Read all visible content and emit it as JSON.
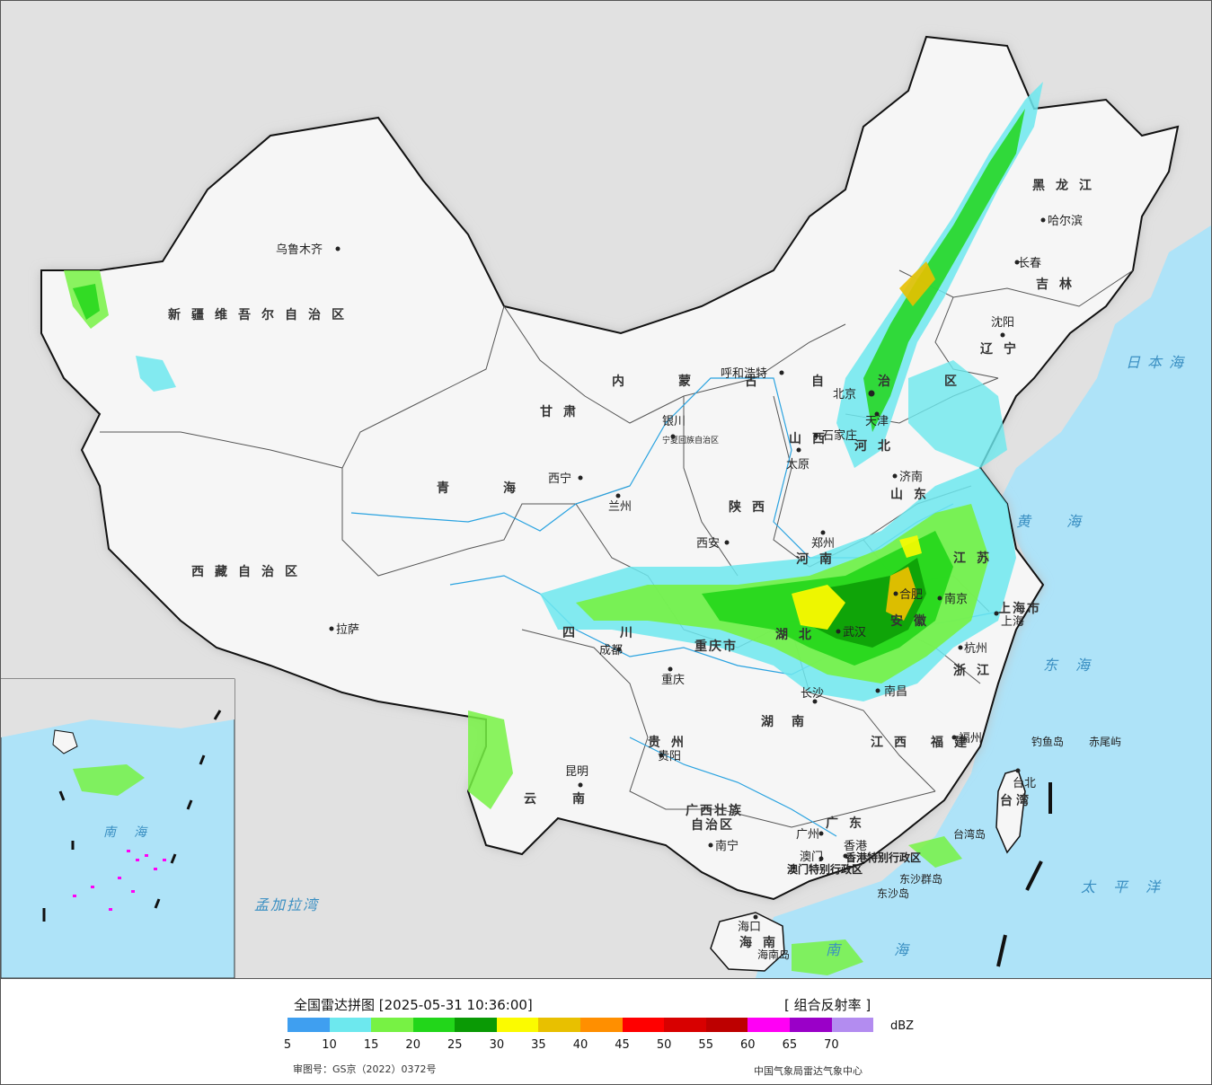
{
  "map": {
    "provinces": [
      {
        "id": "xinjiang",
        "text": "新疆维吾尔自治区"
      },
      {
        "id": "xizang",
        "text": "西藏自治区"
      },
      {
        "id": "qinghai",
        "text": "青海"
      },
      {
        "id": "gansu",
        "text": "甘肃"
      },
      {
        "id": "neimenggu",
        "text": "内蒙古自治区"
      },
      {
        "id": "heilongjiang",
        "text": "黑龙江"
      },
      {
        "id": "jilin",
        "text": "吉林"
      },
      {
        "id": "liaoning",
        "text": "辽宁"
      },
      {
        "id": "hebei",
        "text": "河北"
      },
      {
        "id": "shanxi",
        "text": "山西"
      },
      {
        "id": "shaanxi",
        "text": "陕西"
      },
      {
        "id": "shandong",
        "text": "山东"
      },
      {
        "id": "henan",
        "text": "河南"
      },
      {
        "id": "jiangsu",
        "text": "江苏"
      },
      {
        "id": "anhui",
        "text": "安徽"
      },
      {
        "id": "hubei",
        "text": "湖北"
      },
      {
        "id": "sichuan",
        "text": "四川"
      },
      {
        "id": "chongqing",
        "text": "重庆市"
      },
      {
        "id": "zhejiang",
        "text": "浙江"
      },
      {
        "id": "jiangxi",
        "text": "江西"
      },
      {
        "id": "hunan",
        "text": "湖南"
      },
      {
        "id": "guizhou",
        "text": "贵州"
      },
      {
        "id": "yunnan",
        "text": "云南"
      },
      {
        "id": "fujian",
        "text": "福建"
      },
      {
        "id": "guangxi1",
        "text": "广西壮族"
      },
      {
        "id": "guangxi2",
        "text": "自治区"
      },
      {
        "id": "guangdong",
        "text": "广东"
      },
      {
        "id": "hainan",
        "text": "海南"
      },
      {
        "id": "taiwan",
        "text": "台湾"
      },
      {
        "id": "shanghai",
        "text": "上海市"
      },
      {
        "id": "ningxia",
        "text": "宁夏回族自治区"
      },
      {
        "id": "hongkong",
        "text": "香港特别行政区"
      },
      {
        "id": "macau",
        "text": "澳门特别行政区"
      }
    ],
    "cities": [
      {
        "id": "urumqi",
        "text": "乌鲁木齐"
      },
      {
        "id": "lhasa",
        "text": "拉萨"
      },
      {
        "id": "xining",
        "text": "西宁"
      },
      {
        "id": "lanzhou",
        "text": "兰州"
      },
      {
        "id": "yinchuan",
        "text": "银川"
      },
      {
        "id": "huhehaote",
        "text": "呼和浩特"
      },
      {
        "id": "beijing",
        "text": "北京"
      },
      {
        "id": "tianjin",
        "text": "天津"
      },
      {
        "id": "shijiazhuang",
        "text": "石家庄"
      },
      {
        "id": "taiyuan",
        "text": "太原"
      },
      {
        "id": "jinan",
        "text": "济南"
      },
      {
        "id": "zhengzhou",
        "text": "郑州"
      },
      {
        "id": "xian",
        "text": "西安"
      },
      {
        "id": "nanjing",
        "text": "南京"
      },
      {
        "id": "hefei",
        "text": "合肥"
      },
      {
        "id": "shanghai_c",
        "text": "上海"
      },
      {
        "id": "hangzhou",
        "text": "杭州"
      },
      {
        "id": "wuhan",
        "text": "武汉"
      },
      {
        "id": "chengdu",
        "text": "成都"
      },
      {
        "id": "chongqing_c",
        "text": "重庆"
      },
      {
        "id": "changsha",
        "text": "长沙"
      },
      {
        "id": "nanchang",
        "text": "南昌"
      },
      {
        "id": "guiyang",
        "text": "贵阳"
      },
      {
        "id": "kunming",
        "text": "昆明"
      },
      {
        "id": "fuzhou",
        "text": "福州"
      },
      {
        "id": "taibei",
        "text": "台北"
      },
      {
        "id": "guangzhou",
        "text": "广州"
      },
      {
        "id": "nanning",
        "text": "南宁"
      },
      {
        "id": "xianggang",
        "text": "香港"
      },
      {
        "id": "aomen",
        "text": "澳门"
      },
      {
        "id": "haikou",
        "text": "海口"
      },
      {
        "id": "shenyang",
        "text": "沈阳"
      },
      {
        "id": "changchun",
        "text": "长春"
      },
      {
        "id": "haerbin",
        "text": "哈尔滨"
      }
    ],
    "seas": [
      {
        "id": "ribenhai",
        "text": "日本海"
      },
      {
        "id": "huanghai",
        "text": "黄海"
      },
      {
        "id": "donghai",
        "text": "东海"
      },
      {
        "id": "taipingyang",
        "text": "太平洋"
      },
      {
        "id": "nanhai",
        "text": "南海"
      },
      {
        "id": "mengjialawan",
        "text": "孟加拉湾"
      },
      {
        "id": "inset_nanhai",
        "text": "南海"
      }
    ],
    "islands": [
      {
        "id": "diaoyudao",
        "text": "钓鱼岛"
      },
      {
        "id": "chiweiyu",
        "text": "赤尾屿"
      },
      {
        "id": "taiwandao",
        "text": "台湾岛"
      },
      {
        "id": "dongshaqundao",
        "text": "东沙群岛"
      },
      {
        "id": "dongshadao",
        "text": "东沙岛"
      },
      {
        "id": "hainandao",
        "text": "海南岛"
      }
    ]
  },
  "legend": {
    "title": "全国雷达拼图 [2025-05-31 10:36:00]",
    "product": "[ 组合反射率 ]",
    "unit": "dBZ",
    "approval": "审图号：GS京（2022）0372号",
    "org": "中国气象局雷达气象中心",
    "colors": [
      "#3f9ff0",
      "#6de8ee",
      "#77f244",
      "#22d61a",
      "#0a9a05",
      "#fbfb00",
      "#e8c000",
      "#ff8f00",
      "#ff0000",
      "#d80000",
      "#bd0000",
      "#ff00f5",
      "#9a00c8",
      "#b38cf0"
    ],
    "ticks": [
      "5",
      "10",
      "15",
      "20",
      "25",
      "30",
      "35",
      "40",
      "45",
      "50",
      "55",
      "60",
      "65",
      "70"
    ]
  }
}
